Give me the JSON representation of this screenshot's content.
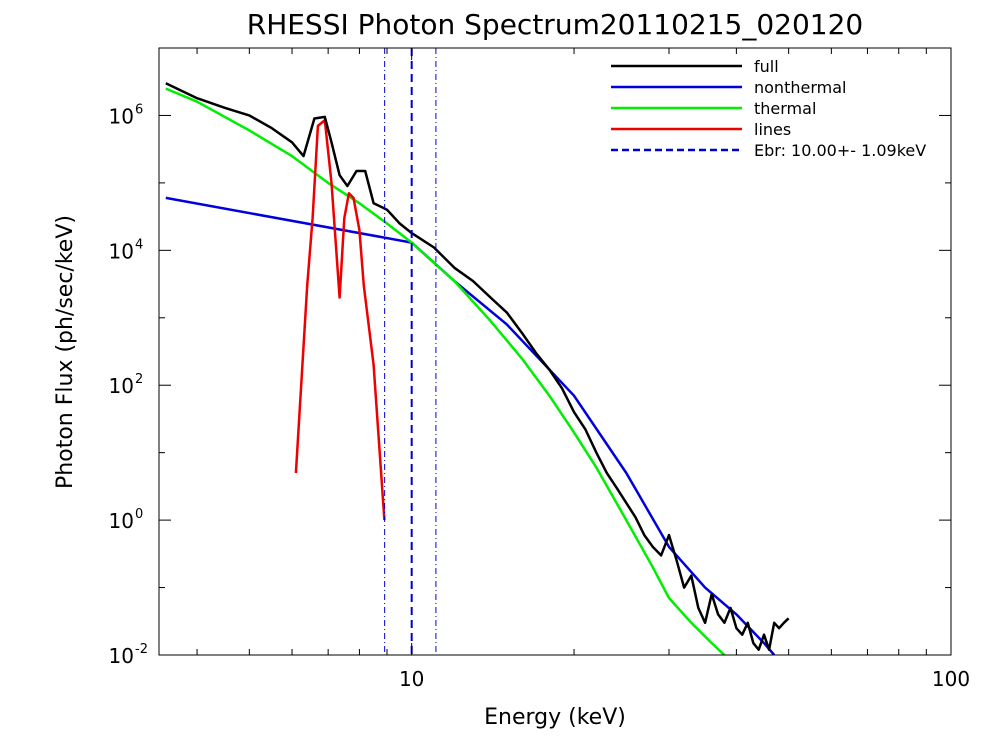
{
  "chart_data": {
    "type": "line",
    "title": "RHESSI Photon Spectrum20110215_020120",
    "xlabel": "Energy (keV)",
    "ylabel": "Photon Flux (ph/sec/keV)",
    "xscale": "log",
    "yscale": "log",
    "xlim": [
      3.4,
      100
    ],
    "ylim": [
      0.01,
      10000000
    ],
    "x_ticks": [
      {
        "value": 10,
        "label": "10"
      },
      {
        "value": 100,
        "label": "100"
      }
    ],
    "y_ticks": [
      {
        "value": 0.01,
        "base": "10",
        "exp": "-2"
      },
      {
        "value": 1,
        "base": "10",
        "exp": "0"
      },
      {
        "value": 100,
        "base": "10",
        "exp": "2"
      },
      {
        "value": 10000,
        "base": "10",
        "exp": "4"
      },
      {
        "value": 1000000,
        "base": "10",
        "exp": "6"
      }
    ],
    "grid": false,
    "legend_position": "top-right",
    "legend": {
      "full": "full",
      "nonthermal": "nonthermal",
      "thermal": "thermal",
      "lines": "lines",
      "ebr": "Ebr: 10.00+- 1.09keV"
    },
    "colors": {
      "full": "#000000",
      "nonthermal": "#0000dd",
      "thermal": "#00ee00",
      "lines": "#ee0000",
      "ebr": "#0000cc"
    },
    "vertical_lines": [
      {
        "x": 8.91,
        "style": "dashdot"
      },
      {
        "x": 10.0,
        "style": "dashed"
      },
      {
        "x": 11.09,
        "style": "dashdot"
      }
    ],
    "series": [
      {
        "name": "full",
        "x": [
          3.5,
          4.0,
          4.5,
          5.0,
          5.5,
          6.0,
          6.3,
          6.6,
          6.9,
          7.1,
          7.35,
          7.6,
          7.9,
          8.2,
          8.5,
          9.0,
          9.5,
          10.0,
          11.0,
          12.0,
          13.0,
          14.0,
          15.0,
          16.0,
          17.0,
          18.0,
          19.0,
          20.0,
          21.0,
          22.0,
          23.0,
          24.0,
          25.0,
          26.0,
          27.0,
          28.0,
          29.0,
          30.0,
          31.0,
          32.0,
          33.0,
          34.0,
          35.0,
          36.0,
          37.0,
          38.0,
          39.0,
          40.0,
          41.0,
          42.0,
          43.0,
          44.0,
          45.0,
          46.0,
          47.0,
          48.0,
          49.0,
          50.0
        ],
        "y": [
          3000000,
          1800000,
          1300000,
          1000000,
          650000,
          400000,
          250000,
          900000,
          950000,
          400000,
          130000,
          90000,
          150000,
          150000,
          50000,
          40000,
          25000,
          18000,
          11000,
          5500,
          3500,
          2000,
          1200,
          600,
          300,
          170,
          90,
          40,
          22,
          10,
          5,
          3,
          1.8,
          1.1,
          0.6,
          0.4,
          0.3,
          0.6,
          0.25,
          0.1,
          0.15,
          0.05,
          0.03,
          0.08,
          0.04,
          0.03,
          0.05,
          0.025,
          0.02,
          0.03,
          0.015,
          0.012,
          0.02,
          0.012,
          0.03,
          0.025,
          0.03,
          0.035
        ]
      },
      {
        "name": "nonthermal",
        "x": [
          3.5,
          10.0,
          12.0,
          15.0,
          20.0,
          25.0,
          30.0,
          35.0,
          40.0,
          45.0,
          47.0
        ],
        "y": [
          60000,
          13000,
          3500,
          800,
          70,
          5,
          0.4,
          0.1,
          0.04,
          0.015,
          0.01
        ]
      },
      {
        "name": "thermal",
        "x": [
          3.5,
          4.0,
          5.0,
          6.0,
          7.0,
          8.0,
          9.0,
          10.0,
          11.0,
          12.0,
          14.0,
          16.0,
          18.0,
          20.0,
          22.0,
          25.0,
          28.0,
          30.0,
          33.0,
          36.0,
          38.0
        ],
        "y": [
          2500000,
          1600000,
          600000,
          250000,
          100000,
          50000,
          25000,
          13000,
          6500,
          3500,
          900,
          250,
          70,
          20,
          6,
          1.0,
          0.2,
          0.07,
          0.03,
          0.015,
          0.01
        ]
      },
      {
        "name": "lines",
        "x": [
          6.1,
          6.4,
          6.55,
          6.7,
          6.9,
          7.1,
          7.35,
          7.5,
          7.65,
          7.8,
          8.0,
          8.15,
          8.5,
          8.9
        ],
        "y": [
          5,
          3000,
          30000,
          700000,
          850000,
          100000,
          2000,
          30000,
          70000,
          60000,
          20000,
          3000,
          200,
          1
        ]
      }
    ]
  }
}
